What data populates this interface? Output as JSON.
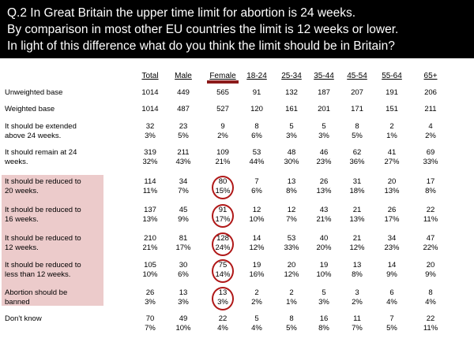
{
  "question": {
    "line1": "Q.2 In Great Britain the upper time limit for abortion is 24 weeks.",
    "line2": "By comparison in most other EU countries the limit is 12 weeks or lower.",
    "line3": "In light of this difference what do you think the limit should be in Britain?"
  },
  "colors": {
    "header_bg": "#000000",
    "highlight_band": "#eccbcb",
    "female_bar": "#8b1a1a",
    "circle": "#b01818"
  },
  "columns": [
    "Total",
    "Male",
    "Female",
    "18-24",
    "25-34",
    "35-44",
    "45-54",
    "55-64",
    "65+"
  ],
  "rows": [
    {
      "label1": "Unweighted base",
      "label2": "",
      "v": [
        "1014",
        "449",
        "565",
        "91",
        "132",
        "187",
        "207",
        "191",
        "206"
      ],
      "p": []
    },
    {
      "label1": "Weighted base",
      "label2": "",
      "v": [
        "1014",
        "487",
        "527",
        "120",
        "161",
        "201",
        "171",
        "151",
        "211"
      ],
      "p": []
    },
    {
      "label1": "It should be extended",
      "label2": "above 24 weeks.",
      "v": [
        "32",
        "23",
        "9",
        "8",
        "5",
        "5",
        "8",
        "2",
        "4"
      ],
      "p": [
        "3%",
        "5%",
        "2%",
        "6%",
        "3%",
        "3%",
        "5%",
        "1%",
        "2%"
      ]
    },
    {
      "label1": "It should remain at 24",
      "label2": "weeks.",
      "v": [
        "319",
        "211",
        "109",
        "53",
        "48",
        "46",
        "62",
        "41",
        "69"
      ],
      "p": [
        "32%",
        "43%",
        "21%",
        "44%",
        "30%",
        "23%",
        "36%",
        "27%",
        "33%"
      ]
    },
    {
      "label1": "It should be reduced to",
      "label2": "20 weeks.",
      "v": [
        "114",
        "34",
        "80",
        "7",
        "13",
        "26",
        "31",
        "20",
        "17"
      ],
      "p": [
        "11%",
        "7%",
        "15%",
        "6%",
        "8%",
        "13%",
        "18%",
        "13%",
        "8%"
      ]
    },
    {
      "label1": "It should be reduced to",
      "label2": "16 weeks.",
      "v": [
        "137",
        "45",
        "91",
        "12",
        "12",
        "43",
        "21",
        "26",
        "22"
      ],
      "p": [
        "13%",
        "9%",
        "17%",
        "10%",
        "7%",
        "21%",
        "13%",
        "17%",
        "11%"
      ]
    },
    {
      "label1": "It should be reduced to",
      "label2": "12 weeks.",
      "v": [
        "210",
        "81",
        "128",
        "14",
        "53",
        "40",
        "21",
        "34",
        "47"
      ],
      "p": [
        "21%",
        "17%",
        "24%",
        "12%",
        "33%",
        "20%",
        "12%",
        "23%",
        "22%"
      ]
    },
    {
      "label1": "It should be reduced to",
      "label2": "less than 12 weeks.",
      "v": [
        "105",
        "30",
        "75",
        "19",
        "20",
        "19",
        "13",
        "14",
        "20"
      ],
      "p": [
        "10%",
        "6%",
        "14%",
        "16%",
        "12%",
        "10%",
        "8%",
        "9%",
        "9%"
      ]
    },
    {
      "label1": "Abortion should be",
      "label2": "banned",
      "v": [
        "26",
        "13",
        "13",
        "2",
        "2",
        "5",
        "3",
        "6",
        "8"
      ],
      "p": [
        "3%",
        "3%",
        "3%",
        "2%",
        "1%",
        "3%",
        "2%",
        "4%",
        "4%"
      ]
    },
    {
      "label1": "Don't know",
      "label2": "",
      "v": [
        "70",
        "49",
        "22",
        "5",
        "8",
        "16",
        "11",
        "7",
        "22"
      ],
      "p": [
        "7%",
        "10%",
        "4%",
        "4%",
        "5%",
        "8%",
        "7%",
        "5%",
        "11%"
      ]
    }
  ]
}
